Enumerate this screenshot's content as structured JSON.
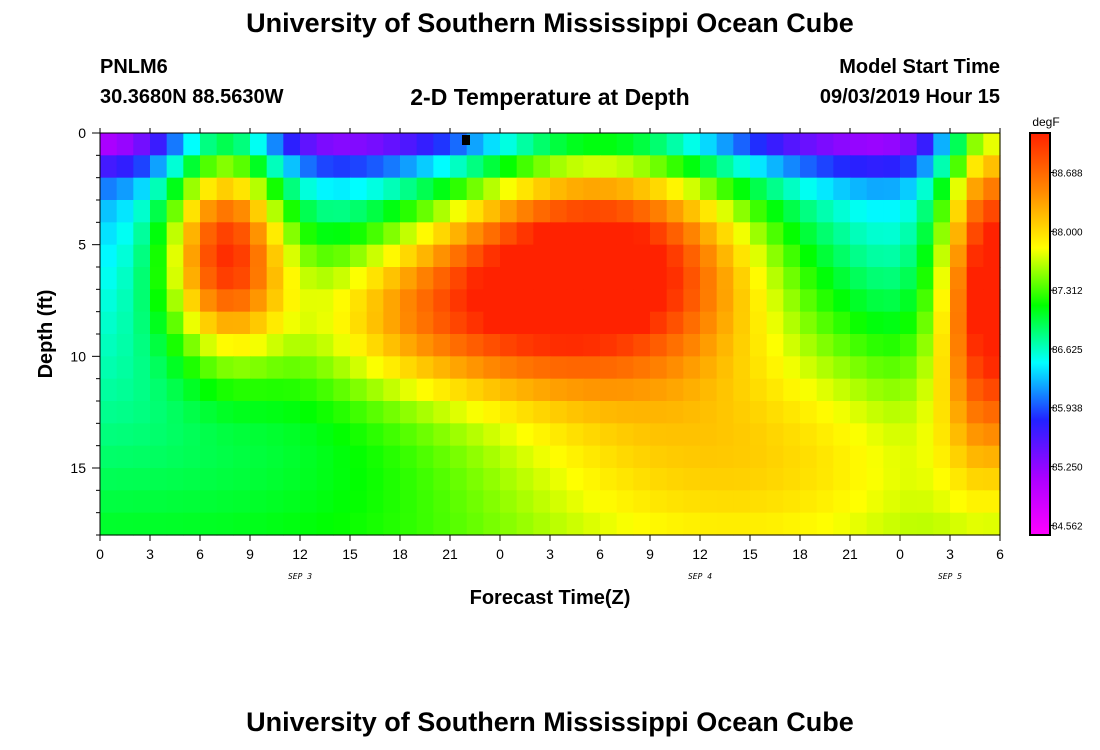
{
  "header": {
    "title": "University of Southern Mississippi Ocean Cube",
    "station": "PNLM6",
    "coords": "30.3680N 88.5630W",
    "subtitle": "2-D Temperature at Depth",
    "model_label": "Model Start Time",
    "model_time": "09/03/2019 Hour 15"
  },
  "footer": {
    "title": "University of Southern Mississippi Ocean Cube"
  },
  "chart_data": {
    "type": "heatmap",
    "xlabel": "Forecast Time(Z)",
    "ylabel": "Depth (ft)",
    "x_tick_labels": [
      "0",
      "3",
      "6",
      "9",
      "12",
      "15",
      "18",
      "21",
      "0",
      "3",
      "6",
      "9",
      "12",
      "15",
      "18",
      "21",
      "0",
      "3",
      "6"
    ],
    "date_labels": [
      {
        "label": "SEP 3",
        "at_tick": 4
      },
      {
        "label": "SEP 4",
        "at_tick": 12
      },
      {
        "label": "SEP 5",
        "at_tick": 17
      }
    ],
    "y_ticks": [
      0,
      5,
      10,
      15
    ],
    "ylim": [
      0,
      18
    ],
    "y_inverted": true,
    "colorbar": {
      "unit": "degF",
      "tick_labels": [
        "88.688",
        "88.000",
        "87.312",
        "86.625",
        "85.938",
        "85.250",
        "84.562"
      ],
      "min": 84.45,
      "max": 89.15,
      "colors": [
        "#ff00ff",
        "#aa00ff",
        "#2222ff",
        "#00ffff",
        "#00ff00",
        "#ffff00",
        "#ff8800",
        "#ff2200"
      ]
    },
    "hours": 54,
    "rows": 18,
    "description_of_values": "temperature degF, row = depth (0..17 ft), column = forecast hour"
  }
}
